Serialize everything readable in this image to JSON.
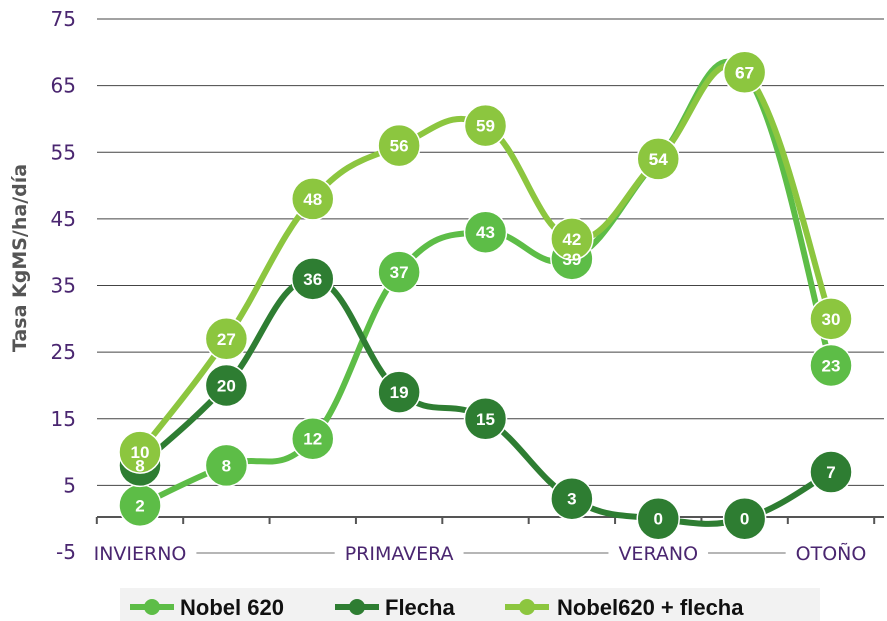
{
  "chart_data": {
    "type": "line",
    "ylabel": "Tasa KgMS/ha/día",
    "ylim": [
      -5,
      75
    ],
    "yticks": [
      75,
      65,
      55,
      45,
      35,
      25,
      15,
      5,
      -5
    ],
    "x": [
      1,
      2,
      3,
      4,
      5,
      6,
      7,
      8,
      9
    ],
    "seasons": [
      {
        "label": "INVIERNO",
        "x": 1.0
      },
      {
        "label": "PRIMAVERA",
        "x": 4.0
      },
      {
        "label": "VERANO",
        "x": 7.0
      },
      {
        "label": "OTOÑO",
        "x": 9.0
      }
    ],
    "grid": true,
    "legend_position": "bottom",
    "series": [
      {
        "name": "Nobel 620",
        "color": "#5dbd47",
        "values": [
          2,
          8,
          12,
          37,
          43,
          39,
          54,
          67,
          23
        ]
      },
      {
        "name": "Flecha",
        "color": "#2e7d32",
        "values": [
          8,
          20,
          36,
          19,
          15,
          3,
          0,
          0,
          7
        ]
      },
      {
        "name": "Nobel620 + flecha",
        "color": "#8cc63f",
        "values": [
          10,
          27,
          48,
          56,
          59,
          42,
          54,
          67,
          30
        ]
      }
    ]
  }
}
